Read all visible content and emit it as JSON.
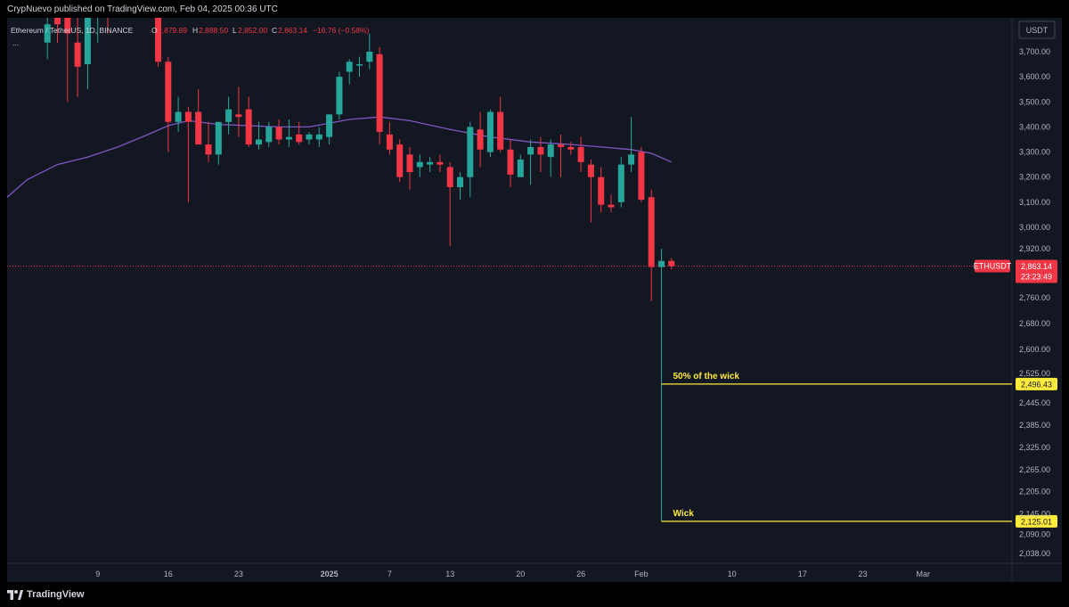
{
  "header": {
    "text": "CrypNuevo published on TradingView.com, Feb 04, 2025 00:36 UTC"
  },
  "footer": {
    "brand": "TradingView",
    "logo_icon": "tradingview-logo-icon"
  },
  "colors": {
    "up": "#26a69a",
    "down": "#f23645",
    "ma": "#7e57c2",
    "annotation": "#ffeb3b",
    "bg": "#131722"
  },
  "legend": {
    "symbol": "Ethereum / TetherUS, 1D, BINANCE",
    "o_label": "O",
    "o": "2,879.89",
    "h_label": "H",
    "h": "2,888.50",
    "l_label": "L",
    "l": "2,852.00",
    "c_label": "C",
    "c": "2,863.14",
    "change": "−16.76 (−0.58%)",
    "more": "..."
  },
  "currency_button": "USDT",
  "chart_data": {
    "type": "candlestick",
    "symbol": "ETHUSDT",
    "ylim": [
      2000,
      3780
    ],
    "price_ticks": [
      {
        "label": "3,700.00",
        "value": 3700
      },
      {
        "label": "3,600.00",
        "value": 3600
      },
      {
        "label": "3,500.00",
        "value": 3500
      },
      {
        "label": "3,400.00",
        "value": 3400
      },
      {
        "label": "3,300.00",
        "value": 3300
      },
      {
        "label": "3,200.00",
        "value": 3200
      },
      {
        "label": "3,100.00",
        "value": 3100
      },
      {
        "label": "3,000.00",
        "value": 3000
      },
      {
        "label": "2,920.00",
        "value": 2920
      },
      {
        "label": "2,760.00",
        "value": 2760
      },
      {
        "label": "2,680.00",
        "value": 2680
      },
      {
        "label": "2,600.00",
        "value": 2600
      },
      {
        "label": "2,525.00",
        "value": 2525
      },
      {
        "label": "2,445.00",
        "value": 2445
      },
      {
        "label": "2,385.00",
        "value": 2385
      },
      {
        "label": "2,325.00",
        "value": 2325
      },
      {
        "label": "2,265.00",
        "value": 2265
      },
      {
        "label": "2,205.00",
        "value": 2205
      },
      {
        "label": "2,145.00",
        "value": 2145
      },
      {
        "label": "2,090.00",
        "value": 2090
      },
      {
        "label": "2,038.00",
        "value": 2038
      }
    ],
    "x_ticks": [
      {
        "label": "9",
        "day": 9,
        "bold": false
      },
      {
        "label": "16",
        "day": 16,
        "bold": false
      },
      {
        "label": "23",
        "day": 23,
        "bold": false
      },
      {
        "label": "2025",
        "day": 32,
        "bold": true
      },
      {
        "label": "7",
        "day": 38,
        "bold": false
      },
      {
        "label": "13",
        "day": 44,
        "bold": false
      },
      {
        "label": "20",
        "day": 51,
        "bold": false
      },
      {
        "label": "26",
        "day": 57,
        "bold": false
      },
      {
        "label": "Feb",
        "day": 63,
        "bold": false
      },
      {
        "label": "10",
        "day": 72,
        "bold": false
      },
      {
        "label": "17",
        "day": 79,
        "bold": false
      },
      {
        "label": "23",
        "day": 85,
        "bold": false
      },
      {
        "label": "Mar",
        "day": 91,
        "bold": false
      }
    ],
    "candles": [
      {
        "d": 4,
        "o": 3720,
        "h": 3830,
        "l": 3670,
        "c": 3760
      },
      {
        "d": 5,
        "o": 3780,
        "h": 3850,
        "l": 3720,
        "c": 3760
      },
      {
        "d": 6,
        "o": 3790,
        "h": 3850,
        "l": 3500,
        "c": 3740
      },
      {
        "d": 7,
        "o": 3720,
        "h": 3780,
        "l": 3520,
        "c": 3640
      },
      {
        "d": 8,
        "o": 3650,
        "h": 3780,
        "l": 3550,
        "c": 3780
      },
      {
        "d": 9,
        "o": 3780,
        "h": 3850,
        "l": 3720,
        "c": 3820
      },
      {
        "d": 10,
        "o": 3820,
        "h": 3880,
        "l": 3740,
        "c": 3790
      },
      {
        "d": 14,
        "o": 3880,
        "h": 3910,
        "l": 3810,
        "c": 3850
      },
      {
        "d": 15,
        "o": 3850,
        "h": 3880,
        "l": 3640,
        "c": 3660
      },
      {
        "d": 16,
        "o": 3660,
        "h": 3680,
        "l": 3300,
        "c": 3420
      },
      {
        "d": 17,
        "o": 3420,
        "h": 3520,
        "l": 3380,
        "c": 3460
      },
      {
        "d": 18,
        "o": 3460,
        "h": 3480,
        "l": 3100,
        "c": 3420
      },
      {
        "d": 19,
        "o": 3460,
        "h": 3550,
        "l": 3340,
        "c": 3330
      },
      {
        "d": 20,
        "o": 3330,
        "h": 3420,
        "l": 3260,
        "c": 3290
      },
      {
        "d": 21,
        "o": 3290,
        "h": 3420,
        "l": 3250,
        "c": 3420
      },
      {
        "d": 22,
        "o": 3420,
        "h": 3520,
        "l": 3370,
        "c": 3470
      },
      {
        "d": 23,
        "o": 3450,
        "h": 3560,
        "l": 3360,
        "c": 3440
      },
      {
        "d": 24,
        "o": 3470,
        "h": 3520,
        "l": 3320,
        "c": 3330
      },
      {
        "d": 25,
        "o": 3330,
        "h": 3420,
        "l": 3310,
        "c": 3350
      },
      {
        "d": 26,
        "o": 3340,
        "h": 3420,
        "l": 3320,
        "c": 3400
      },
      {
        "d": 27,
        "o": 3400,
        "h": 3430,
        "l": 3330,
        "c": 3350
      },
      {
        "d": 28,
        "o": 3350,
        "h": 3430,
        "l": 3320,
        "c": 3360
      },
      {
        "d": 29,
        "o": 3370,
        "h": 3420,
        "l": 3330,
        "c": 3340
      },
      {
        "d": 30,
        "o": 3350,
        "h": 3380,
        "l": 3330,
        "c": 3370
      },
      {
        "d": 31,
        "o": 3350,
        "h": 3400,
        "l": 3320,
        "c": 3370
      },
      {
        "d": 32,
        "o": 3360,
        "h": 3450,
        "l": 3330,
        "c": 3450
      },
      {
        "d": 33,
        "o": 3450,
        "h": 3620,
        "l": 3430,
        "c": 3600
      },
      {
        "d": 34,
        "o": 3620,
        "h": 3670,
        "l": 3570,
        "c": 3660
      },
      {
        "d": 35,
        "o": 3650,
        "h": 3680,
        "l": 3600,
        "c": 3650
      },
      {
        "d": 36,
        "o": 3660,
        "h": 3740,
        "l": 3630,
        "c": 3700
      },
      {
        "d": 37,
        "o": 3690,
        "h": 3710,
        "l": 3330,
        "c": 3380
      },
      {
        "d": 38,
        "o": 3370,
        "h": 3420,
        "l": 3290,
        "c": 3310
      },
      {
        "d": 39,
        "o": 3330,
        "h": 3350,
        "l": 3180,
        "c": 3200
      },
      {
        "d": 40,
        "o": 3290,
        "h": 3320,
        "l": 3150,
        "c": 3220
      },
      {
        "d": 41,
        "o": 3240,
        "h": 3290,
        "l": 3200,
        "c": 3260
      },
      {
        "d": 42,
        "o": 3250,
        "h": 3280,
        "l": 3220,
        "c": 3260
      },
      {
        "d": 43,
        "o": 3260,
        "h": 3290,
        "l": 3220,
        "c": 3250
      },
      {
        "d": 44,
        "o": 3240,
        "h": 3260,
        "l": 2930,
        "c": 3160
      },
      {
        "d": 45,
        "o": 3160,
        "h": 3220,
        "l": 3110,
        "c": 3200
      },
      {
        "d": 46,
        "o": 3200,
        "h": 3420,
        "l": 3120,
        "c": 3400
      },
      {
        "d": 47,
        "o": 3390,
        "h": 3460,
        "l": 3240,
        "c": 3310
      },
      {
        "d": 48,
        "o": 3300,
        "h": 3470,
        "l": 3280,
        "c": 3460
      },
      {
        "d": 49,
        "o": 3460,
        "h": 3520,
        "l": 3300,
        "c": 3310
      },
      {
        "d": 50,
        "o": 3310,
        "h": 3350,
        "l": 3160,
        "c": 3210
      },
      {
        "d": 51,
        "o": 3200,
        "h": 3290,
        "l": 3200,
        "c": 3270
      },
      {
        "d": 52,
        "o": 3290,
        "h": 3350,
        "l": 3170,
        "c": 3320
      },
      {
        "d": 53,
        "o": 3320,
        "h": 3360,
        "l": 3220,
        "c": 3290
      },
      {
        "d": 54,
        "o": 3280,
        "h": 3350,
        "l": 3200,
        "c": 3330
      },
      {
        "d": 55,
        "o": 3330,
        "h": 3370,
        "l": 3200,
        "c": 3320
      },
      {
        "d": 56,
        "o": 3320,
        "h": 3340,
        "l": 3290,
        "c": 3310
      },
      {
        "d": 57,
        "o": 3320,
        "h": 3360,
        "l": 3220,
        "c": 3260
      },
      {
        "d": 58,
        "o": 3250,
        "h": 3270,
        "l": 3020,
        "c": 3200
      },
      {
        "d": 59,
        "o": 3200,
        "h": 3240,
        "l": 3060,
        "c": 3090
      },
      {
        "d": 60,
        "o": 3090,
        "h": 3130,
        "l": 3060,
        "c": 3080
      },
      {
        "d": 61,
        "o": 3100,
        "h": 3280,
        "l": 3080,
        "c": 3250
      },
      {
        "d": 62,
        "o": 3250,
        "h": 3440,
        "l": 3220,
        "c": 3290
      },
      {
        "d": 63,
        "o": 3300,
        "h": 3320,
        "l": 3100,
        "c": 3110
      },
      {
        "d": 64,
        "o": 3120,
        "h": 3150,
        "l": 2750,
        "c": 2860
      },
      {
        "d": 65,
        "o": 2860,
        "h": 2920,
        "l": 2125,
        "c": 2880
      },
      {
        "d": 66,
        "o": 2880,
        "h": 2890,
        "l": 2852,
        "c": 2863
      }
    ],
    "moving_average": [
      {
        "d": 0,
        "v": 3120
      },
      {
        "d": 2,
        "v": 3190
      },
      {
        "d": 5,
        "v": 3250
      },
      {
        "d": 8,
        "v": 3280
      },
      {
        "d": 11,
        "v": 3320
      },
      {
        "d": 14,
        "v": 3370
      },
      {
        "d": 16,
        "v": 3405
      },
      {
        "d": 18,
        "v": 3425
      },
      {
        "d": 21,
        "v": 3410
      },
      {
        "d": 24,
        "v": 3405
      },
      {
        "d": 27,
        "v": 3400
      },
      {
        "d": 30,
        "v": 3400
      },
      {
        "d": 34,
        "v": 3430
      },
      {
        "d": 37,
        "v": 3440
      },
      {
        "d": 40,
        "v": 3425
      },
      {
        "d": 44,
        "v": 3390
      },
      {
        "d": 48,
        "v": 3360
      },
      {
        "d": 52,
        "v": 3340
      },
      {
        "d": 56,
        "v": 3330
      },
      {
        "d": 59,
        "v": 3320
      },
      {
        "d": 62,
        "v": 3310
      },
      {
        "d": 64,
        "v": 3295
      },
      {
        "d": 66,
        "v": 3260
      }
    ],
    "current_price": {
      "label": "ETHUSDT",
      "value": 2863.14,
      "value_label": "2,863.14",
      "countdown": "23:23:49"
    },
    "annotations": [
      {
        "text": "50% of the wick",
        "value": 2496.43,
        "value_label": "2,496.43"
      },
      {
        "text": "Wick",
        "value": 2125.01,
        "value_label": "2,125.01"
      }
    ]
  }
}
